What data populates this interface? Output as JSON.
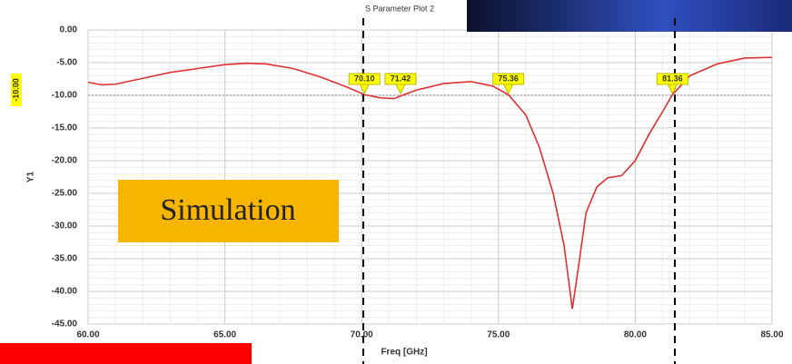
{
  "chart_data": {
    "type": "line",
    "title": "S Parameter Plot 2",
    "x_label": "Freq [GHz]",
    "y_label": "Y1",
    "x": [
      60,
      60.5,
      61,
      62,
      63,
      64,
      65,
      65.8,
      66.5,
      67.5,
      68.5,
      69.5,
      70.1,
      70.7,
      71.2,
      71.42,
      72,
      73,
      74,
      74.8,
      75.36,
      76,
      76.5,
      77,
      77.4,
      77.7,
      77.9,
      78.2,
      78.6,
      79,
      79.5,
      80,
      80.5,
      81,
      81.36,
      82,
      83,
      84,
      85
    ],
    "series": [
      {
        "name": "Y1",
        "color": "#e03030",
        "values": [
          -8.0,
          -8.4,
          -8.3,
          -7.4,
          -6.5,
          -5.9,
          -5.3,
          -5.1,
          -5.2,
          -5.9,
          -7.2,
          -8.8,
          -9.9,
          -10.4,
          -10.5,
          -10.1,
          -9.2,
          -8.2,
          -7.9,
          -8.6,
          -9.9,
          -13,
          -18,
          -25,
          -33,
          -42.7,
          -37,
          -28,
          -24,
          -22.6,
          -22.3,
          -20,
          -16,
          -12.5,
          -9.9,
          -7,
          -5.2,
          -4.3,
          -4.2
        ]
      }
    ],
    "xlim": [
      60,
      85
    ],
    "xticks": [
      {
        "value": 60,
        "label": "60.00"
      },
      {
        "value": 65,
        "label": "65.00"
      },
      {
        "value": 70,
        "label": "70.00"
      },
      {
        "value": 75,
        "label": "75.00"
      },
      {
        "value": 80,
        "label": "80.00"
      },
      {
        "value": 85,
        "label": "85.00"
      }
    ],
    "ylim": [
      -45,
      0
    ],
    "yticks": [
      {
        "value": 0,
        "label": "0.00"
      },
      {
        "value": -5,
        "label": "-5.00"
      },
      {
        "value": -10,
        "label": "-10.00"
      },
      {
        "value": -15,
        "label": "-15.00"
      },
      {
        "value": -20,
        "label": "-20.00"
      },
      {
        "value": -25,
        "label": "-25.00"
      },
      {
        "value": -30,
        "label": "-30.00"
      },
      {
        "value": -35,
        "label": "-35.00"
      },
      {
        "value": -40,
        "label": "-40.00"
      },
      {
        "value": -45,
        "label": "-45.00"
      }
    ],
    "grid": true,
    "threshold": {
      "value": -10,
      "label": "-10.00"
    },
    "markers": [
      {
        "value": 70.1,
        "label": "70.10"
      },
      {
        "value": 71.42,
        "label": "71.42"
      },
      {
        "value": 75.36,
        "label": "75.36"
      },
      {
        "value": 81.36,
        "label": "81.36"
      }
    ],
    "annotation": "Simulation"
  }
}
